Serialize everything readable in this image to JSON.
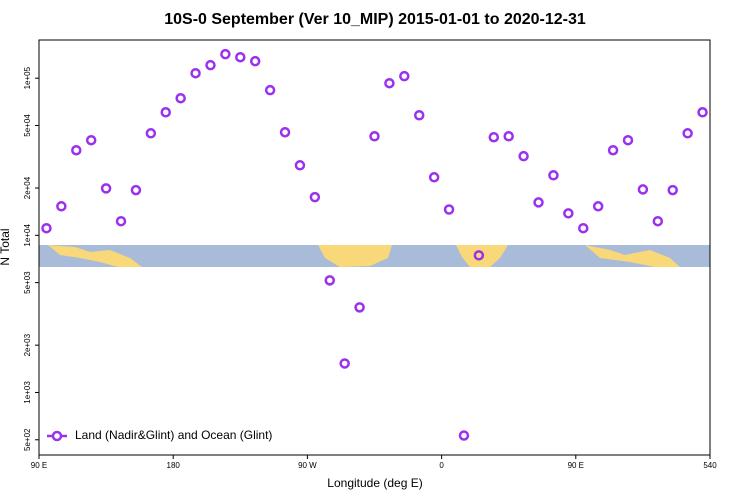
{
  "chart_data": {
    "type": "scatter",
    "title": "10S-0 September (Ver 10_MIP)   2015-01-01 to 2020-12-31",
    "x_label": "Longitude (deg E)",
    "y_label": "N Total",
    "log_y": true,
    "legend": "bottom-left",
    "x": [
      95,
      105,
      115,
      125,
      135,
      145,
      155,
      165,
      175,
      185,
      195,
      205,
      215,
      225,
      235,
      245,
      255,
      265,
      275,
      285,
      295,
      305,
      315,
      325,
      335,
      345,
      355,
      365,
      375,
      385,
      395,
      405,
      415,
      425,
      435,
      445,
      455,
      465,
      475,
      485,
      495,
      505,
      515,
      525,
      535
    ],
    "series": [
      {
        "name": "Land (Nadir&Glint) and Ocean (Glint)",
        "color": "#9b30ee",
        "values": [
          11100,
          15300,
          34800,
          40300,
          19900,
          12300,
          19400,
          44600,
          60700,
          74600,
          107600,
          121000,
          142200,
          136000,
          128300,
          83900,
          45300,
          27900,
          17500,
          5170,
          1530,
          3480,
          42700,
          92900,
          103000,
          58100,
          23400,
          14600,
          532,
          7460,
          42100,
          42700,
          31900,
          16200,
          24100,
          13800,
          11100,
          15300,
          34800,
          40300,
          19600,
          12300,
          19400,
          44600,
          60700
        ]
      }
    ],
    "xlim": [
      90,
      540
    ],
    "xticks": [
      {
        "value": 90,
        "label": "90 E"
      },
      180,
      {
        "value": 270,
        "label": "90 W"
      },
      {
        "value": 360,
        "label": "0"
      },
      {
        "value": 450,
        "label": "90 E"
      },
      540
    ],
    "ylim": [
      400,
      175000
    ],
    "yticks": [
      {
        "value": 500,
        "label": "5e+02"
      },
      {
        "value": 1000,
        "label": "1e+03"
      },
      {
        "value": 2000,
        "label": "2e+03"
      },
      {
        "value": 5000,
        "label": "5e+03"
      },
      {
        "value": 10000,
        "label": "1e+04"
      },
      {
        "value": 20000,
        "label": "2e+04"
      },
      {
        "value": 50000,
        "label": "5e+04"
      },
      {
        "value": 100000,
        "label": "1e+05"
      }
    ]
  }
}
